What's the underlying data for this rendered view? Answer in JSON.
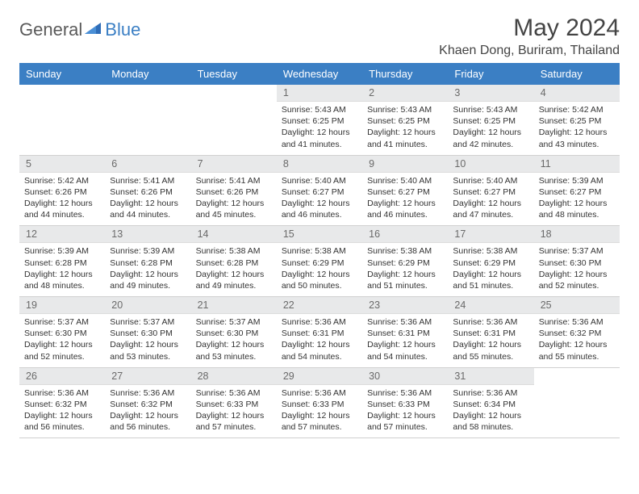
{
  "brand": {
    "part1": "General",
    "part2": "Blue"
  },
  "title": "May 2024",
  "location": "Khaen Dong, Buriram, Thailand",
  "colors": {
    "accent": "#3b7fc4",
    "header_text": "#ffffff",
    "daynum_bg": "#e8e9ea",
    "body_text": "#333333"
  },
  "day_names": [
    "Sunday",
    "Monday",
    "Tuesday",
    "Wednesday",
    "Thursday",
    "Friday",
    "Saturday"
  ],
  "weeks": [
    [
      null,
      null,
      null,
      {
        "n": "1",
        "sr": "5:43 AM",
        "ss": "6:25 PM",
        "dl": "12 hours and 41 minutes."
      },
      {
        "n": "2",
        "sr": "5:43 AM",
        "ss": "6:25 PM",
        "dl": "12 hours and 41 minutes."
      },
      {
        "n": "3",
        "sr": "5:43 AM",
        "ss": "6:25 PM",
        "dl": "12 hours and 42 minutes."
      },
      {
        "n": "4",
        "sr": "5:42 AM",
        "ss": "6:25 PM",
        "dl": "12 hours and 43 minutes."
      }
    ],
    [
      {
        "n": "5",
        "sr": "5:42 AM",
        "ss": "6:26 PM",
        "dl": "12 hours and 44 minutes."
      },
      {
        "n": "6",
        "sr": "5:41 AM",
        "ss": "6:26 PM",
        "dl": "12 hours and 44 minutes."
      },
      {
        "n": "7",
        "sr": "5:41 AM",
        "ss": "6:26 PM",
        "dl": "12 hours and 45 minutes."
      },
      {
        "n": "8",
        "sr": "5:40 AM",
        "ss": "6:27 PM",
        "dl": "12 hours and 46 minutes."
      },
      {
        "n": "9",
        "sr": "5:40 AM",
        "ss": "6:27 PM",
        "dl": "12 hours and 46 minutes."
      },
      {
        "n": "10",
        "sr": "5:40 AM",
        "ss": "6:27 PM",
        "dl": "12 hours and 47 minutes."
      },
      {
        "n": "11",
        "sr": "5:39 AM",
        "ss": "6:27 PM",
        "dl": "12 hours and 48 minutes."
      }
    ],
    [
      {
        "n": "12",
        "sr": "5:39 AM",
        "ss": "6:28 PM",
        "dl": "12 hours and 48 minutes."
      },
      {
        "n": "13",
        "sr": "5:39 AM",
        "ss": "6:28 PM",
        "dl": "12 hours and 49 minutes."
      },
      {
        "n": "14",
        "sr": "5:38 AM",
        "ss": "6:28 PM",
        "dl": "12 hours and 49 minutes."
      },
      {
        "n": "15",
        "sr": "5:38 AM",
        "ss": "6:29 PM",
        "dl": "12 hours and 50 minutes."
      },
      {
        "n": "16",
        "sr": "5:38 AM",
        "ss": "6:29 PM",
        "dl": "12 hours and 51 minutes."
      },
      {
        "n": "17",
        "sr": "5:38 AM",
        "ss": "6:29 PM",
        "dl": "12 hours and 51 minutes."
      },
      {
        "n": "18",
        "sr": "5:37 AM",
        "ss": "6:30 PM",
        "dl": "12 hours and 52 minutes."
      }
    ],
    [
      {
        "n": "19",
        "sr": "5:37 AM",
        "ss": "6:30 PM",
        "dl": "12 hours and 52 minutes."
      },
      {
        "n": "20",
        "sr": "5:37 AM",
        "ss": "6:30 PM",
        "dl": "12 hours and 53 minutes."
      },
      {
        "n": "21",
        "sr": "5:37 AM",
        "ss": "6:30 PM",
        "dl": "12 hours and 53 minutes."
      },
      {
        "n": "22",
        "sr": "5:36 AM",
        "ss": "6:31 PM",
        "dl": "12 hours and 54 minutes."
      },
      {
        "n": "23",
        "sr": "5:36 AM",
        "ss": "6:31 PM",
        "dl": "12 hours and 54 minutes."
      },
      {
        "n": "24",
        "sr": "5:36 AM",
        "ss": "6:31 PM",
        "dl": "12 hours and 55 minutes."
      },
      {
        "n": "25",
        "sr": "5:36 AM",
        "ss": "6:32 PM",
        "dl": "12 hours and 55 minutes."
      }
    ],
    [
      {
        "n": "26",
        "sr": "5:36 AM",
        "ss": "6:32 PM",
        "dl": "12 hours and 56 minutes."
      },
      {
        "n": "27",
        "sr": "5:36 AM",
        "ss": "6:32 PM",
        "dl": "12 hours and 56 minutes."
      },
      {
        "n": "28",
        "sr": "5:36 AM",
        "ss": "6:33 PM",
        "dl": "12 hours and 57 minutes."
      },
      {
        "n": "29",
        "sr": "5:36 AM",
        "ss": "6:33 PM",
        "dl": "12 hours and 57 minutes."
      },
      {
        "n": "30",
        "sr": "5:36 AM",
        "ss": "6:33 PM",
        "dl": "12 hours and 57 minutes."
      },
      {
        "n": "31",
        "sr": "5:36 AM",
        "ss": "6:34 PM",
        "dl": "12 hours and 58 minutes."
      },
      null
    ]
  ],
  "labels": {
    "sunrise": "Sunrise: ",
    "sunset": "Sunset: ",
    "daylight": "Daylight: "
  }
}
